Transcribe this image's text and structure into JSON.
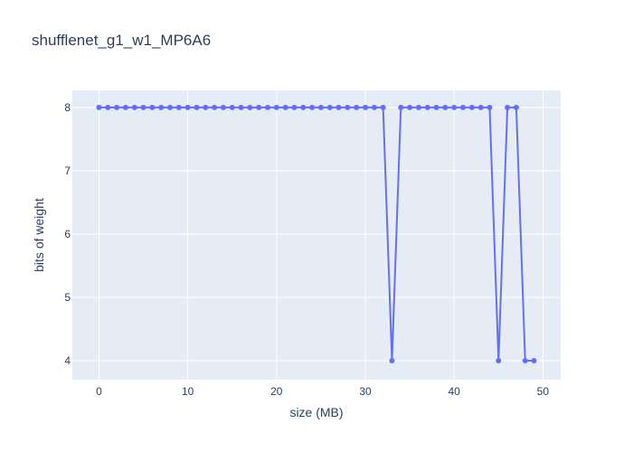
{
  "chart_data": {
    "type": "line",
    "title": "shufflenet_g1_w1_MP6A6",
    "xlabel": "size (MB)",
    "ylabel": "bits of weight",
    "xlim": [
      -3,
      52
    ],
    "ylim": [
      3.7,
      8.27
    ],
    "grid": true,
    "legend": "none",
    "x_ticks": [
      0,
      10,
      20,
      30,
      40,
      50
    ],
    "y_ticks": [
      4,
      5,
      6,
      7,
      8
    ],
    "colors": {
      "line": "#636efa",
      "plot_bg": "#e5ecf6",
      "grid": "#ffffff",
      "text": "#2a3f5f"
    },
    "series": [
      {
        "x": [
          0,
          1,
          2,
          3,
          4,
          5,
          6,
          7,
          8,
          9,
          10,
          11,
          12,
          13,
          14,
          15,
          16,
          17,
          18,
          19,
          20,
          21,
          22,
          23,
          24,
          25,
          26,
          27,
          28,
          29,
          30,
          31,
          32,
          33,
          34,
          35,
          36,
          37,
          38,
          39,
          40,
          41,
          42,
          43,
          44,
          45,
          46,
          47,
          48,
          49
        ],
        "y": [
          8,
          8,
          8,
          8,
          8,
          8,
          8,
          8,
          8,
          8,
          8,
          8,
          8,
          8,
          8,
          8,
          8,
          8,
          8,
          8,
          8,
          8,
          8,
          8,
          8,
          8,
          8,
          8,
          8,
          8,
          8,
          8,
          8,
          4,
          8,
          8,
          8,
          8,
          8,
          8,
          8,
          8,
          8,
          8,
          8,
          4,
          8,
          8,
          4,
          4
        ]
      }
    ]
  }
}
